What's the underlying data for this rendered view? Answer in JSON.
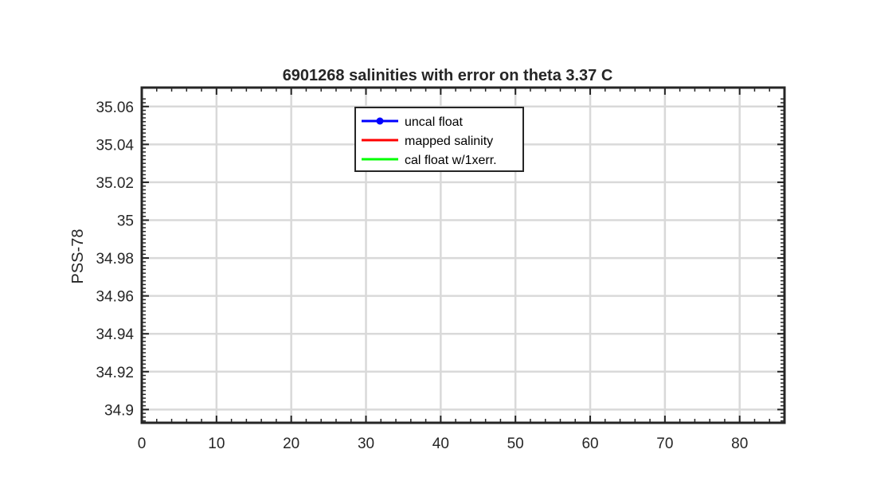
{
  "chart_data": {
    "type": "line",
    "title": "6901268 salinities with error on theta 3.37 C",
    "xlabel": "",
    "ylabel": "PSS-78",
    "xlim": [
      0,
      86
    ],
    "ylim": [
      34.893,
      35.07
    ],
    "x_ticks": [
      0,
      10,
      20,
      30,
      40,
      50,
      60,
      70,
      80
    ],
    "x_tick_labels": [
      "0",
      "10",
      "20",
      "30",
      "40",
      "50",
      "60",
      "70",
      "80"
    ],
    "y_ticks": [
      34.9,
      34.92,
      34.94,
      34.96,
      34.98,
      35.0,
      35.02,
      35.04,
      35.06
    ],
    "y_tick_labels": [
      "34.9",
      "34.92",
      "34.94",
      "34.96",
      "34.98",
      "35",
      "35.02",
      "35.04",
      "35.06"
    ],
    "grid": true,
    "legend_position": "top-center",
    "series": [
      {
        "name": "uncal float",
        "color": "#0000ff",
        "marker": "dot",
        "x": [],
        "y": []
      },
      {
        "name": "mapped salinity",
        "color": "#ff0000",
        "marker": "none",
        "x": [],
        "y": []
      },
      {
        "name": "cal float w/1xerr.",
        "color": "#00ff00",
        "marker": "none",
        "x": [],
        "y": []
      }
    ]
  }
}
